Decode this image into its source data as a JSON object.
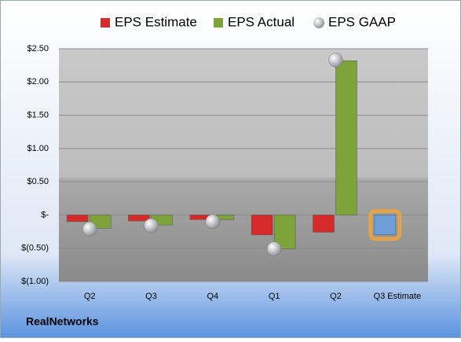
{
  "company": "RealNetworks",
  "chart_data": {
    "type": "bar",
    "categories": [
      "Q2",
      "Q3",
      "Q4",
      "Q1",
      "Q2",
      "Q3 Estimate"
    ],
    "series": [
      {
        "name": "EPS Estimate",
        "color": "#d42a2a",
        "values": [
          -0.1,
          -0.09,
          -0.07,
          -0.3,
          -0.26,
          -0.3
        ],
        "highlight": {
          "index": 5,
          "color": "#6e9fd9",
          "glow": "#f5a53a"
        }
      },
      {
        "name": "EPS Actual",
        "color": "#7ea33a",
        "values": [
          -0.2,
          -0.15,
          -0.07,
          -0.51,
          2.32,
          null
        ]
      },
      {
        "name": "EPS GAAP",
        "color": "#b8bcc2",
        "marker": "circle",
        "values": [
          -0.21,
          -0.16,
          -0.1,
          -0.51,
          2.33,
          null
        ]
      }
    ],
    "ylim": [
      -1.0,
      2.5
    ],
    "yticks": [
      {
        "value": 2.5,
        "label": "$2.50"
      },
      {
        "value": 2.0,
        "label": "$2.00"
      },
      {
        "value": 1.5,
        "label": "$1.50"
      },
      {
        "value": 1.0,
        "label": "$1.00"
      },
      {
        "value": 0.5,
        "label": "$0.50"
      },
      {
        "value": 0,
        "label": "$-"
      },
      {
        "value": -0.5,
        "label": "$(0.50)"
      },
      {
        "value": -1.0,
        "label": "$(1.00)"
      }
    ],
    "grid": true,
    "legend_position": "top"
  }
}
